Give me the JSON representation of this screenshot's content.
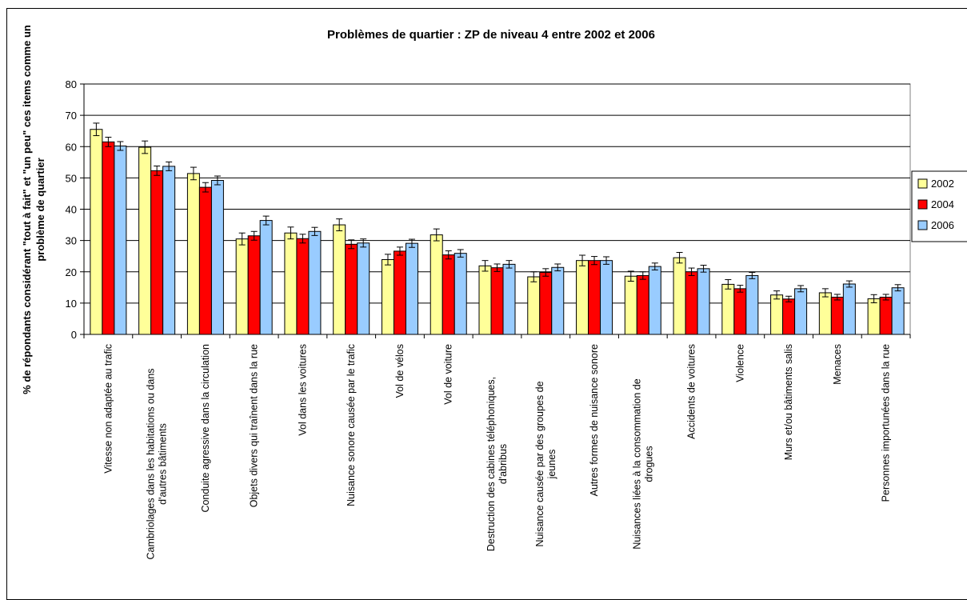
{
  "chart_data": {
    "type": "bar",
    "title": "Problèmes de quartier : ZP de niveau 4 entre 2002 et 2006",
    "ylabel": "% de répondants considérant \"tout à fait\" et \"un peu\" ces items comme un problème de quartier",
    "ylabel_lines": [
      "% de répondants considérant \"tout à fait\" et \"un peu\" ces items comme un",
      "problème de quartier"
    ],
    "xlabel": "",
    "ylim": [
      0,
      80
    ],
    "yticks": [
      0,
      10,
      20,
      30,
      40,
      50,
      60,
      70,
      80
    ],
    "grid": true,
    "legend_position": "right",
    "categories": [
      [
        "Vitesse non adaptée au trafic"
      ],
      [
        "Cambriolages dans les habitations ou dans",
        "d'autres bâtiments"
      ],
      [
        "Conduite agressive dans la circulation"
      ],
      [
        "Objets divers qui traînent dans la rue"
      ],
      [
        "Vol dans les voitures"
      ],
      [
        "Nuisance sonore causée par le trafic"
      ],
      [
        "Vol de vélos"
      ],
      [
        "Vol de voiture"
      ],
      [
        "Destruction des cabines téléphoniques,",
        "d'abribus"
      ],
      [
        "Nuisance causée par des groupes de",
        "jeunes"
      ],
      [
        "Autres formes de nuisance sonore"
      ],
      [
        "Nuisances liées à la consommation de",
        "drogues"
      ],
      [
        "Accidents de voitures"
      ],
      [
        "Violence"
      ],
      [
        "Murs et/ou bâtiments salis"
      ],
      [
        "Menaces"
      ],
      [
        "Personnes importunées dans la rue"
      ]
    ],
    "series": [
      {
        "name": "2002",
        "color": "#ffff99",
        "values": [
          65.5,
          59.8,
          51.4,
          30.5,
          32.4,
          35.0,
          23.9,
          31.8,
          21.9,
          18.4,
          23.6,
          18.6,
          24.5,
          16.0,
          12.6,
          13.3,
          11.4
        ],
        "error": [
          2.0,
          2.0,
          2.0,
          1.9,
          1.9,
          1.9,
          1.7,
          1.9,
          1.7,
          1.6,
          1.7,
          1.6,
          1.7,
          1.5,
          1.3,
          1.3,
          1.3
        ]
      },
      {
        "name": "2004",
        "color": "#ff0000",
        "values": [
          61.5,
          52.3,
          47.0,
          31.5,
          30.6,
          28.8,
          26.6,
          25.4,
          21.3,
          19.8,
          23.6,
          18.8,
          20.0,
          14.6,
          11.3,
          11.9,
          11.9
        ],
        "error": [
          1.5,
          1.5,
          1.5,
          1.4,
          1.4,
          1.4,
          1.3,
          1.3,
          1.2,
          1.2,
          1.3,
          1.2,
          1.2,
          1.1,
          0.9,
          0.9,
          0.9
        ]
      },
      {
        "name": "2006",
        "color": "#99ccff",
        "values": [
          60.2,
          53.7,
          49.2,
          36.4,
          32.9,
          29.2,
          29.1,
          25.9,
          22.4,
          21.4,
          23.6,
          21.7,
          21.0,
          18.8,
          14.6,
          16.1,
          14.9
        ],
        "error": [
          1.4,
          1.4,
          1.4,
          1.4,
          1.3,
          1.3,
          1.3,
          1.2,
          1.2,
          1.1,
          1.2,
          1.1,
          1.1,
          1.0,
          1.0,
          1.0,
          1.0
        ]
      }
    ]
  }
}
